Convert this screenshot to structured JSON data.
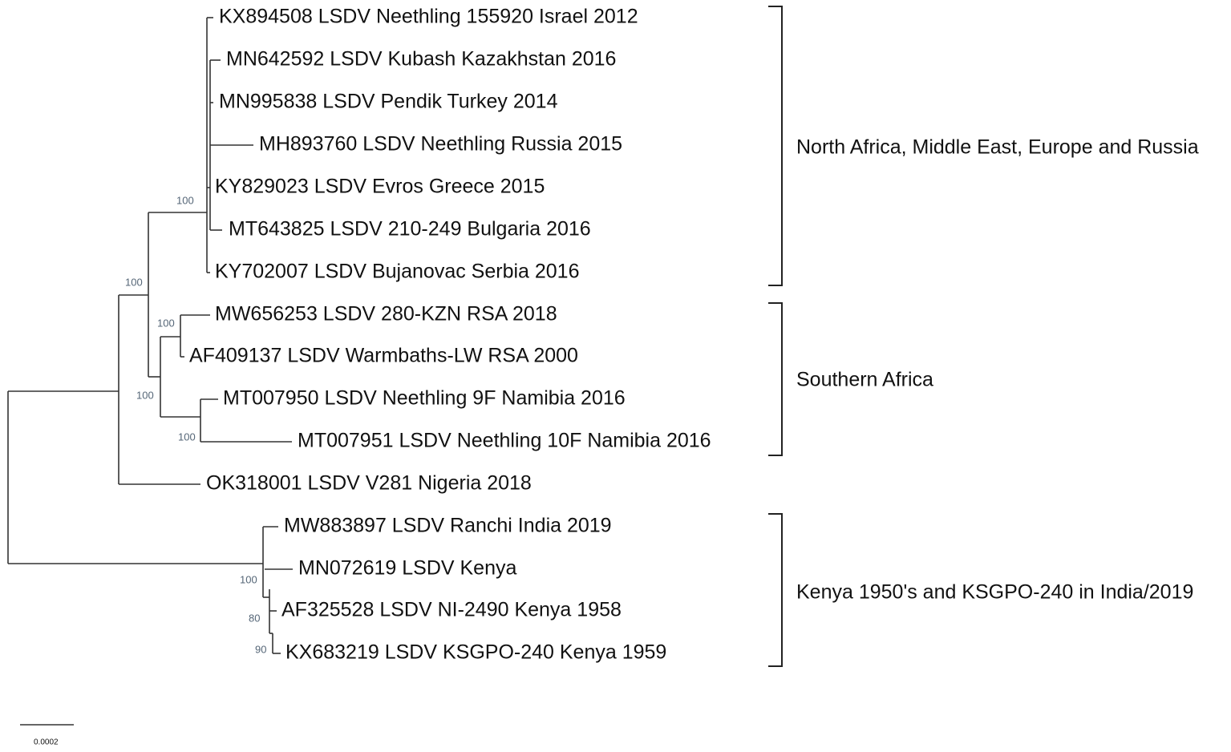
{
  "leaves": [
    "KX894508 LSDV Neethling 155920 Israel 2012",
    "MN642592 LSDV Kubash Kazakhstan 2016",
    "MN995838 LSDV Pendik Turkey 2014",
    "MH893760 LSDV Neethling Russia 2015",
    "KY829023 LSDV Evros Greece 2015",
    "MT643825 LSDV 210-249 Bulgaria 2016",
    "KY702007 LSDV Bujanovac Serbia 2016",
    "MW656253 LSDV 280-KZN RSA 2018",
    "AF409137 LSDV Warmbaths-LW RSA 2000",
    "MT007950 LSDV Neethling 9F Namibia 2016",
    "MT007951 LSDV Neethling 10F Namibia 2016",
    "OK318001 LSDV V281 Nigeria 2018",
    "MW883897 LSDV Ranchi India 2019",
    "MN072619 LSDV Kenya",
    "AF325528 LSDV NI-2490 Kenya 1958",
    "KX683219 LSDV KSGPO-240 Kenya 1959"
  ],
  "bootstrap": [
    100,
    100,
    100,
    100,
    100,
    100,
    80,
    90
  ],
  "clades": [
    "North Africa, Middle East, Europe and Russia",
    "Southern Africa",
    "Kenya 1950's and KSGPO-240 in India/2019"
  ],
  "scale_bar": {
    "label": "0.0002"
  }
}
